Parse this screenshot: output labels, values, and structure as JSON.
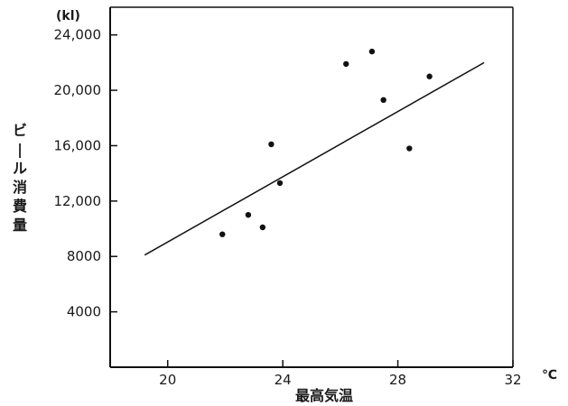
{
  "chart_data": {
    "type": "scatter",
    "title": "",
    "xlabel": "最高気温",
    "xunit": "℃",
    "ylabel": "ビール消費量",
    "yunit": "(kl)",
    "xlim": [
      18,
      32
    ],
    "ylim": [
      0,
      26000
    ],
    "xticks": [
      20,
      24,
      28,
      32
    ],
    "xtick_labels": [
      "20",
      "24",
      "28",
      "32"
    ],
    "yticks": [
      4000,
      8000,
      12000,
      16000,
      20000,
      24000
    ],
    "ytick_labels": [
      "4000",
      "8000",
      "12,000",
      "16,000",
      "20,000",
      "24,000"
    ],
    "grid": false,
    "points": [
      {
        "x": 21.9,
        "y": 9600
      },
      {
        "x": 22.8,
        "y": 11000
      },
      {
        "x": 23.3,
        "y": 10100
      },
      {
        "x": 23.6,
        "y": 16100
      },
      {
        "x": 23.9,
        "y": 13300
      },
      {
        "x": 26.2,
        "y": 21900
      },
      {
        "x": 27.1,
        "y": 22800
      },
      {
        "x": 27.5,
        "y": 19300
      },
      {
        "x": 28.4,
        "y": 15800
      },
      {
        "x": 29.1,
        "y": 21000
      }
    ],
    "trend_line": {
      "x": [
        19.2,
        31.0
      ],
      "y": [
        8100,
        22000
      ]
    }
  }
}
